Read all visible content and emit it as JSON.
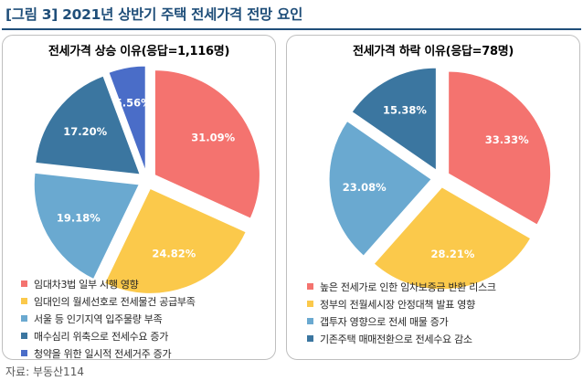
{
  "header": {
    "title": "[그림 3] 2021년 상반기 주택 전세가격 전망 요인"
  },
  "source": "자료: 부동산114",
  "chart_data": [
    {
      "type": "pie",
      "title": "전세가격 상승 이유(응답=1,116명)",
      "slices": [
        {
          "label": "임대차3법 일부 시행 영향",
          "value": 31.09,
          "display": "31.09%",
          "color": "#f4736f"
        },
        {
          "label": "임대인의 월세선호로 전세물건 공급부족",
          "value": 24.82,
          "display": "24.82%",
          "color": "#fbc94b"
        },
        {
          "label": "서울 등 인기지역 입주물량 부족",
          "value": 19.18,
          "display": "19.18%",
          "color": "#6aa9d0"
        },
        {
          "label": "매수심리 위축으로 전세수요 증가",
          "value": 17.2,
          "display": "17.20%",
          "color": "#3b76a0"
        },
        {
          "label": "청약을 위한 일시적 전세거주 증가",
          "value": 5.56,
          "display": "5.56%",
          "color": "#4a6dc8"
        }
      ]
    },
    {
      "type": "pie",
      "title": "전세가격 하락 이유(응답=78명)",
      "slices": [
        {
          "label": "높은 전세가로 인한 임차보증금 반환 리스크",
          "value": 33.33,
          "display": "33.33%",
          "color": "#f4736f"
        },
        {
          "label": "정부의 전월세시장 안정대책 발표 영향",
          "value": 28.21,
          "display": "28.21%",
          "color": "#fbc94b"
        },
        {
          "label": "갭투자 영향으로 전세 매물 증가",
          "value": 23.08,
          "display": "23.08%",
          "color": "#6aa9d0"
        },
        {
          "label": "기존주택 매매전환으로 전세수요 감소",
          "value": 15.38,
          "display": "15.38%",
          "color": "#3b76a0"
        }
      ]
    }
  ]
}
